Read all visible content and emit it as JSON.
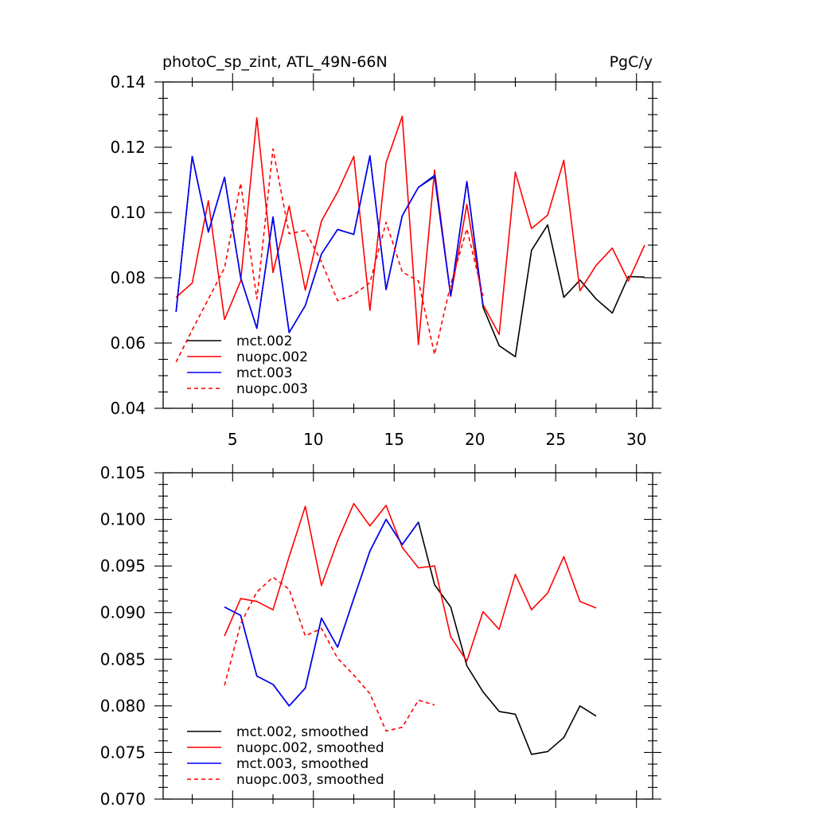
{
  "chart_data": [
    {
      "type": "line",
      "title": "photoC_sp_zint, ATL_49N-66N",
      "units": "PgC/y",
      "xlabel": "",
      "ylabel": "",
      "xlim": [
        0.7,
        31
      ],
      "ylim": [
        0.04,
        0.14
      ],
      "x_ticks": [
        5,
        10,
        15,
        20,
        25,
        30
      ],
      "y_ticks": [
        0.04,
        0.06,
        0.08,
        0.1,
        0.12,
        0.14
      ],
      "y_tick_labels": [
        "0.04",
        "0.06",
        "0.08",
        "0.10",
        "0.12",
        "0.14"
      ],
      "grid": false,
      "legend_position": "bottom-left",
      "series": [
        {
          "name": "mct.002",
          "color": "#000000",
          "style": "solid",
          "x": [
            1.5,
            2.5,
            3.5,
            4.5,
            5.5,
            6.5,
            7.5,
            8.5,
            9.5,
            10.5,
            11.5,
            12.5,
            13.5,
            14.5,
            15.5,
            16.5,
            17.5,
            18.5,
            19.5,
            20.5,
            21.5,
            22.5,
            23.5,
            24.5,
            25.5,
            26.5,
            27.5,
            28.5,
            29.5,
            30.5
          ],
          "values": [
            0.0695,
            0.1172,
            0.094,
            0.1108,
            0.08,
            0.0645,
            0.0986,
            0.0632,
            0.0715,
            0.0873,
            0.0948,
            0.0933,
            0.1174,
            0.0764,
            0.099,
            0.1077,
            0.111,
            0.0745,
            0.1095,
            0.071,
            0.0592,
            0.0558,
            0.0884,
            0.0962,
            0.074,
            0.0793,
            0.0735,
            0.0692,
            0.0804,
            0.0802
          ]
        },
        {
          "name": "nuopc.002",
          "color": "#ff0000",
          "style": "solid",
          "x": [
            1.5,
            2.5,
            3.5,
            4.5,
            5.5,
            6.5,
            7.5,
            8.5,
            9.5,
            10.5,
            11.5,
            12.5,
            13.5,
            14.5,
            15.5,
            16.5,
            17.5,
            18.5,
            19.5,
            20.5,
            21.5,
            22.5,
            23.5,
            24.5,
            25.5,
            26.5,
            27.5,
            28.5,
            29.5,
            30.5
          ],
          "values": [
            0.074,
            0.0784,
            0.1036,
            0.0672,
            0.079,
            0.129,
            0.0816,
            0.102,
            0.0762,
            0.0974,
            0.1063,
            0.1172,
            0.07,
            0.1153,
            0.1295,
            0.0595,
            0.113,
            0.0743,
            0.1025,
            0.0718,
            0.0626,
            0.1124,
            0.0951,
            0.0992,
            0.116,
            0.076,
            0.0838,
            0.0891,
            0.079,
            0.09
          ]
        },
        {
          "name": "mct.003",
          "color": "#0000ff",
          "style": "solid",
          "x": [
            1.5,
            2.5,
            3.5,
            4.5,
            5.5,
            6.5,
            7.5,
            8.5,
            9.5,
            10.5,
            11.5,
            12.5,
            13.5,
            14.5,
            15.5,
            16.5,
            17.5,
            18.5,
            19.5,
            20.5
          ],
          "values": [
            0.0695,
            0.1172,
            0.094,
            0.1108,
            0.08,
            0.0645,
            0.0986,
            0.0632,
            0.0715,
            0.0873,
            0.0948,
            0.0933,
            0.1174,
            0.0764,
            0.099,
            0.1077,
            0.1114,
            0.0745,
            0.1095,
            0.0715
          ]
        },
        {
          "name": "nuopc.003",
          "color": "#ff0000",
          "style": "dashed",
          "x": [
            1.5,
            2.5,
            3.5,
            4.5,
            5.5,
            6.5,
            7.5,
            8.5,
            9.5,
            10.5,
            11.5,
            12.5,
            13.5,
            14.5,
            15.5,
            16.5,
            17.5,
            18.5,
            19.5,
            20.5
          ],
          "values": [
            0.0542,
            0.064,
            0.0735,
            0.083,
            0.109,
            0.0735,
            0.1195,
            0.0935,
            0.0945,
            0.0848,
            0.073,
            0.0748,
            0.0785,
            0.097,
            0.0818,
            0.079,
            0.0565,
            0.078,
            0.095,
            0.0745
          ]
        }
      ]
    },
    {
      "type": "line",
      "title": "",
      "xlabel": "",
      "ylabel": "",
      "xlim": [
        0.7,
        31
      ],
      "ylim": [
        0.07,
        0.105
      ],
      "x_ticks": [
        5,
        10,
        15,
        20,
        25,
        30
      ],
      "y_ticks": [
        0.07,
        0.075,
        0.08,
        0.085,
        0.09,
        0.095,
        0.1,
        0.105
      ],
      "y_tick_labels": [
        "0.070",
        "0.075",
        "0.080",
        "0.085",
        "0.090",
        "0.095",
        "0.100",
        "0.105"
      ],
      "grid": false,
      "legend_position": "bottom-left",
      "series": [
        {
          "name": "mct.002, smoothed",
          "color": "#000000",
          "style": "solid",
          "x": [
            4.5,
            5.5,
            6.5,
            7.5,
            8.5,
            9.5,
            10.5,
            11.5,
            12.5,
            13.5,
            14.5,
            15.5,
            16.5,
            17.5,
            18.5,
            19.5,
            20.5,
            21.5,
            22.5,
            23.5,
            24.5,
            25.5,
            26.5,
            27.5
          ],
          "values": [
            0.0906,
            0.0897,
            0.0832,
            0.0823,
            0.08,
            0.0819,
            0.0894,
            0.0863,
            0.0915,
            0.0966,
            0.1,
            0.0973,
            0.0997,
            0.093,
            0.0906,
            0.0843,
            0.0815,
            0.0794,
            0.0791,
            0.0748,
            0.0751,
            0.0766,
            0.08,
            0.0789
          ]
        },
        {
          "name": "nuopc.002, smoothed",
          "color": "#ff0000",
          "style": "solid",
          "x": [
            4.5,
            5.5,
            6.5,
            7.5,
            8.5,
            9.5,
            10.5,
            11.5,
            12.5,
            13.5,
            14.5,
            15.5,
            16.5,
            17.5,
            18.5,
            19.5,
            20.5,
            21.5,
            22.5,
            23.5,
            24.5,
            25.5,
            26.5,
            27.5
          ],
          "values": [
            0.0875,
            0.0915,
            0.0912,
            0.0903,
            0.096,
            0.1014,
            0.0929,
            0.0977,
            0.1017,
            0.0993,
            0.1015,
            0.097,
            0.0948,
            0.095,
            0.0874,
            0.0848,
            0.0901,
            0.0882,
            0.0941,
            0.0903,
            0.0921,
            0.096,
            0.0912,
            0.0905
          ]
        },
        {
          "name": "mct.003, smoothed",
          "color": "#0000ff",
          "style": "solid",
          "x": [
            4.5,
            5.5,
            6.5,
            7.5,
            8.5,
            9.5,
            10.5,
            11.5,
            12.5,
            13.5,
            14.5,
            15.5,
            16.5
          ],
          "values": [
            0.0906,
            0.0897,
            0.0832,
            0.0823,
            0.08,
            0.0819,
            0.0894,
            0.0863,
            0.0915,
            0.0966,
            0.1,
            0.0973,
            0.0997
          ]
        },
        {
          "name": "nuopc.003, smoothed",
          "color": "#ff0000",
          "style": "dashed",
          "x": [
            4.5,
            5.5,
            6.5,
            7.5,
            8.5,
            9.5,
            10.5,
            11.5,
            12.5,
            13.5,
            14.5,
            15.5,
            16.5,
            17.5
          ],
          "values": [
            0.0822,
            0.0888,
            0.0922,
            0.0938,
            0.0925,
            0.0875,
            0.0883,
            0.0851,
            0.0833,
            0.0813,
            0.0773,
            0.0777,
            0.0806,
            0.0801
          ]
        }
      ]
    }
  ]
}
